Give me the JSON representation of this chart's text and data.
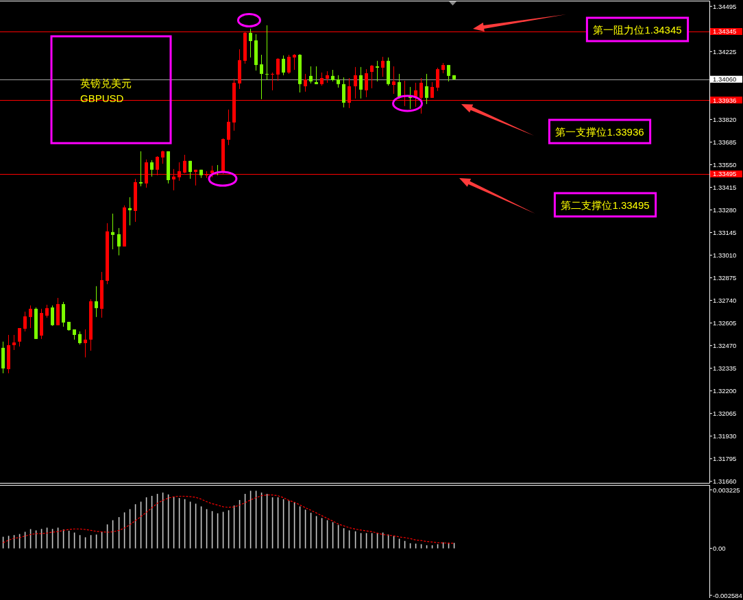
{
  "chart_data": [
    {
      "type": "candlestick",
      "tick_labels": "y",
      "categories": [
        null,
        null,
        null,
        null,
        null,
        null,
        null,
        null,
        null,
        null,
        null,
        null,
        null,
        null,
        null,
        null,
        null,
        null,
        null,
        null,
        null,
        null,
        null,
        null,
        null,
        null,
        null,
        null,
        null,
        null,
        null,
        null,
        null,
        null,
        null,
        null,
        null,
        null,
        null,
        null,
        null,
        null,
        null,
        null,
        null,
        null,
        null,
        null,
        null,
        null,
        null,
        null,
        null,
        null,
        null,
        null,
        null,
        null,
        null,
        null,
        null,
        null,
        null,
        null,
        null,
        null,
        null,
        null,
        null,
        null,
        null,
        null,
        null,
        null,
        null,
        null,
        null,
        null,
        null,
        null,
        null,
        null,
        null,
        null,
        null,
        null,
        null,
        null,
        null,
        null,
        null,
        null,
        null,
        null,
        null,
        null,
        null,
        null,
        null,
        null,
        null,
        null,
        null,
        null,
        null,
        null,
        null,
        null,
        null,
        null,
        null,
        null,
        null,
        null,
        null,
        null,
        null,
        null,
        null,
        null,
        null,
        null,
        null,
        null,
        null,
        null,
        null,
        null,
        null
      ],
      "ohlc": [
        [
          1.32457,
          1.32494,
          1.32305,
          1.32334
        ],
        [
          1.3233,
          1.32534,
          1.32305,
          1.32473
        ],
        [
          1.32473,
          1.32534,
          1.32444,
          1.32489
        ],
        [
          1.32494,
          1.32575,
          1.32465,
          1.32575
        ],
        [
          1.32571,
          1.32673,
          1.32555,
          1.32645
        ],
        [
          1.32641,
          1.3271,
          1.32575,
          1.3269
        ],
        [
          1.3269,
          1.32698,
          1.3251,
          1.3251
        ],
        [
          1.3253,
          1.3269,
          1.3251,
          1.32665
        ],
        [
          1.32649,
          1.32714,
          1.32637,
          1.32694
        ],
        [
          1.32698,
          1.3271,
          1.32588,
          1.32592
        ],
        [
          1.32592,
          1.32755,
          1.32592,
          1.32718
        ],
        [
          1.32718,
          1.32731,
          1.32583,
          1.32608
        ],
        [
          1.32612,
          1.32612,
          1.32559,
          1.32563
        ],
        [
          1.32567,
          1.32567,
          1.32506,
          1.32534
        ],
        [
          1.32539,
          1.32555,
          1.32477,
          1.32485
        ],
        [
          1.32485,
          1.32567,
          1.324,
          1.32506
        ],
        [
          1.32506,
          1.32747,
          1.3244,
          1.32735
        ],
        [
          1.32735,
          1.32825,
          1.32641,
          1.32694
        ],
        [
          1.3269,
          1.3291,
          1.32637,
          1.32861
        ],
        [
          1.32857,
          1.33201,
          1.32837,
          1.33152
        ],
        [
          1.33148,
          1.33258,
          1.33045,
          1.33131
        ],
        [
          1.33135,
          1.33172,
          1.33009,
          1.33062
        ],
        [
          1.33062,
          1.33307,
          1.33062,
          1.33295
        ],
        [
          1.33291,
          1.33356,
          1.33188,
          1.33278
        ],
        [
          1.33274,
          1.33466,
          1.33209,
          1.33446
        ],
        [
          1.33446,
          1.3363,
          1.33421,
          1.33438
        ],
        [
          1.33438,
          1.33581,
          1.33413,
          1.33564
        ],
        [
          1.33564,
          1.33577,
          1.33479,
          1.3352
        ],
        [
          1.3352,
          1.33601,
          1.33487,
          1.33597
        ],
        [
          1.33593,
          1.33634,
          1.33556,
          1.3363
        ],
        [
          1.3363,
          1.3363,
          1.33438,
          1.33458
        ],
        [
          1.33462,
          1.33524,
          1.33397,
          1.33479
        ],
        [
          1.33475,
          1.33564,
          1.33454,
          1.33511
        ],
        [
          1.33503,
          1.33609,
          1.33499,
          1.33573
        ],
        [
          1.33573,
          1.33573,
          1.33466,
          1.33507
        ],
        [
          1.33507,
          1.3352,
          1.33426,
          1.3352
        ],
        [
          1.3352,
          1.3352,
          1.33471,
          1.33487
        ],
        [
          1.33487,
          1.33511,
          1.33471,
          1.33491
        ],
        [
          1.33499,
          1.33544,
          1.33475,
          1.33515
        ],
        [
          1.33507,
          1.33548,
          1.33487,
          1.33503
        ],
        [
          1.33503,
          1.33708,
          1.33495,
          1.33703
        ],
        [
          1.33699,
          1.33879,
          1.33667,
          1.33806
        ],
        [
          1.33802,
          1.34063,
          1.33753,
          1.34039
        ],
        [
          1.34035,
          1.34239,
          1.34002,
          1.34174
        ],
        [
          1.3417,
          1.34341,
          1.34153,
          1.34337
        ],
        [
          1.34337,
          1.34362,
          1.3419,
          1.34288
        ],
        [
          1.34292,
          1.34329,
          1.34112,
          1.34145
        ],
        [
          1.34149,
          1.34206,
          1.33941,
          1.34092
        ],
        [
          1.34092,
          1.34382,
          1.34055,
          1.34088
        ],
        [
          1.34088,
          1.341,
          1.33994,
          1.34092
        ],
        [
          1.34088,
          1.34186,
          1.34051,
          1.34182
        ],
        [
          1.34182,
          1.34202,
          1.34084,
          1.341
        ],
        [
          1.341,
          1.34206,
          1.34092,
          1.34194
        ],
        [
          1.3419,
          1.3421,
          1.34116,
          1.34206
        ],
        [
          1.34206,
          1.3421,
          1.33981,
          1.34031
        ],
        [
          1.34018,
          1.34092,
          1.33986,
          1.34059
        ],
        [
          1.3408,
          1.34137,
          1.34035,
          1.34047
        ],
        [
          1.34043,
          1.34137,
          1.34031,
          1.34031
        ],
        [
          1.34031,
          1.341,
          1.34022,
          1.34067
        ],
        [
          1.34063,
          1.34108,
          1.34039,
          1.34084
        ],
        [
          1.3408,
          1.34116,
          1.34047,
          1.34055
        ],
        [
          1.34059,
          1.34084,
          1.3401,
          1.34031
        ],
        [
          1.34031,
          1.34071,
          1.33892,
          1.3392
        ],
        [
          1.3392,
          1.34067,
          1.33888,
          1.34018
        ],
        [
          1.34018,
          1.34133,
          1.33945,
          1.34084
        ],
        [
          1.34084,
          1.34133,
          1.33945,
          1.33998
        ],
        [
          1.33994,
          1.3412,
          1.33953,
          1.34096
        ],
        [
          1.34104,
          1.34145,
          1.34006,
          1.34141
        ],
        [
          1.34137,
          1.3417,
          1.34047,
          1.34129
        ],
        [
          1.34129,
          1.34194,
          1.34075,
          1.3417
        ],
        [
          1.3417,
          1.3419,
          1.34022,
          1.34031
        ],
        [
          1.34026,
          1.34137,
          1.33973,
          1.34047
        ],
        [
          1.34043,
          1.34092,
          1.33945,
          1.33953
        ],
        [
          1.33957,
          1.34051,
          1.339,
          1.33965
        ],
        [
          1.33957,
          1.34014,
          1.33883,
          1.33949
        ],
        [
          1.33953,
          1.34039,
          1.33896,
          1.33994
        ],
        [
          1.33949,
          1.34067,
          1.33855,
          1.34039
        ],
        [
          1.34018,
          1.34092,
          1.33912,
          1.33949
        ],
        [
          1.33949,
          1.34043,
          1.33949,
          1.34014
        ],
        [
          1.3401,
          1.34129,
          1.3399,
          1.3412
        ],
        [
          1.34116,
          1.34157,
          1.34096,
          1.34145
        ],
        [
          1.34145,
          1.34145,
          1.34047,
          1.3408
        ],
        [
          1.34084,
          1.34084,
          1.34055,
          1.3406
        ],
        null,
        null,
        null,
        null,
        null,
        null,
        null,
        null,
        null,
        null,
        null,
        null,
        null,
        null,
        null,
        null,
        null,
        null,
        null,
        null,
        null,
        null,
        null,
        null,
        null,
        null,
        null,
        null,
        null,
        null,
        null,
        null,
        null,
        null,
        null,
        null,
        null,
        null,
        null,
        null,
        null,
        null,
        null,
        null,
        null,
        null
      ],
      "colors": [
        "#7cfc00",
        "#ff0000",
        "#ff0000",
        "#ff0000",
        "#ff0000",
        "#ff0000",
        "#7cfc00",
        "#ff0000",
        "#ff0000",
        "#7cfc00",
        "#ff0000",
        "#7cfc00",
        "#7cfc00",
        "#7cfc00",
        "#7cfc00",
        "#ff0000",
        "#ff0000",
        "#7cfc00",
        "#ff0000",
        "#ff0000",
        "#7cfc00",
        "#7cfc00",
        "#ff0000",
        "#7cfc00",
        "#ff0000",
        "#7cfc00",
        "#ff0000",
        "#7cfc00",
        "#ff0000",
        "#ff0000",
        "#7cfc00",
        "#ff0000",
        "#ff0000",
        "#ff0000",
        "#7cfc00",
        "#ff0000",
        "#7cfc00",
        "#ff0000",
        "#ff0000",
        "#7cfc00",
        "#ff0000",
        "#ff0000",
        "#ff0000",
        "#ff0000",
        "#ff0000",
        "#7cfc00",
        "#7cfc00",
        "#7cfc00",
        "#7cfc00",
        "#ff0000",
        "#ff0000",
        "#7cfc00",
        "#ff0000",
        "#ff0000",
        "#7cfc00",
        "#ff0000",
        "#7cfc00",
        "#7cfc00",
        "#ff0000",
        "#ff0000",
        "#7cfc00",
        "#7cfc00",
        "#7cfc00",
        "#ff0000",
        "#ff0000",
        "#7cfc00",
        "#ff0000",
        "#ff0000",
        "#7cfc00",
        "#ff0000",
        "#7cfc00",
        "#ff0000",
        "#7cfc00",
        "#ff0000",
        "#7cfc00",
        "#ff0000",
        "#ff0000",
        "#7cfc00",
        "#ff0000",
        "#ff0000",
        "#ff0000",
        "#7cfc00",
        "#7cfc00",
        null,
        null,
        null,
        null,
        null,
        null,
        null,
        null,
        null,
        null,
        null,
        null,
        null,
        null,
        null,
        null,
        null,
        null,
        null,
        null,
        null,
        null,
        null,
        null,
        null,
        null,
        null,
        null,
        null,
        null,
        null,
        null,
        null,
        null,
        null,
        null,
        null,
        null,
        null,
        null,
        null,
        null,
        null,
        null,
        null,
        null
      ],
      "ylim": [
        1.31651,
        1.34533
      ],
      "yticks": [
        {
          "value": 1.34495,
          "label": "1.34495"
        },
        {
          "value": 1.34345,
          "label": "1.34345"
        },
        {
          "value": 1.34225,
          "label": "1.34225"
        },
        {
          "value": 1.3406,
          "label": "1.34060"
        },
        {
          "value": 1.33936,
          "label": "1.33936"
        },
        {
          "value": 1.3382,
          "label": "1.33820"
        },
        {
          "value": 1.33685,
          "label": "1.33685"
        },
        {
          "value": 1.3355,
          "label": "1.33550"
        },
        {
          "value": 1.33495,
          "label": "1.33495"
        },
        {
          "value": 1.33415,
          "label": "1.33415"
        },
        {
          "value": 1.3328,
          "label": "1.33280"
        },
        {
          "value": 1.33145,
          "label": "1.33145"
        },
        {
          "value": 1.3301,
          "label": "1.33010"
        },
        {
          "value": 1.32875,
          "label": "1.32875"
        },
        {
          "value": 1.3274,
          "label": "1.32740"
        },
        {
          "value": 1.32605,
          "label": "1.32605"
        },
        {
          "value": 1.3247,
          "label": "1.32470"
        },
        {
          "value": 1.32335,
          "label": "1.32335"
        },
        {
          "value": 1.322,
          "label": "1.32200"
        },
        {
          "value": 1.32065,
          "label": "1.32065"
        },
        {
          "value": 1.3193,
          "label": "1.31930"
        },
        {
          "value": 1.31795,
          "label": "1.31795"
        },
        {
          "value": 1.3166,
          "label": "1.31660"
        }
      ],
      "ref_lines": [
        {
          "axis": "y",
          "value": 1.34345,
          "label": "第一阻力位1.34345",
          "color": "#ff0000"
        },
        {
          "axis": "y",
          "value": 1.33936,
          "label": "第一支撑位1.33936",
          "color": "#ff0000"
        },
        {
          "axis": "y",
          "value": 1.33495,
          "label": "第二支撑位1.33495",
          "color": "#ff0000"
        },
        {
          "axis": "y",
          "value": 1.3406,
          "color": "#a0a0a0"
        }
      ],
      "annotations": [
        "英镑兑美元\nGBPUSD"
      ]
    },
    {
      "type": "bar",
      "tick_labels": "y",
      "line_style": "dotted",
      "categories": [
        null,
        null,
        null,
        null,
        null,
        null,
        null,
        null,
        null,
        null,
        null,
        null,
        null,
        null,
        null,
        null,
        null,
        null,
        null,
        null,
        null,
        null,
        null,
        null,
        null,
        null,
        null,
        null,
        null,
        null,
        null,
        null,
        null,
        null,
        null,
        null,
        null,
        null,
        null,
        null,
        null,
        null,
        null,
        null,
        null,
        null,
        null,
        null,
        null,
        null,
        null,
        null,
        null,
        null,
        null,
        null,
        null,
        null,
        null,
        null,
        null,
        null,
        null,
        null,
        null,
        null,
        null,
        null,
        null,
        null,
        null,
        null,
        null,
        null,
        null,
        null,
        null,
        null,
        null,
        null,
        null,
        null,
        null,
        null,
        null,
        null,
        null,
        null,
        null,
        null,
        null,
        null,
        null,
        null,
        null,
        null,
        null,
        null,
        null,
        null,
        null,
        null,
        null,
        null,
        null,
        null,
        null,
        null,
        null,
        null,
        null,
        null,
        null,
        null,
        null,
        null,
        null,
        null,
        null,
        null,
        null,
        null,
        null,
        null,
        null,
        null,
        null,
        null,
        null
      ],
      "series": [
        {
          "color": "#c8c8c8",
          "values": [
            0.00064,
            0.00069,
            0.00073,
            0.00079,
            0.00091,
            0.00106,
            0.00099,
            0.00107,
            0.00114,
            0.00107,
            0.00114,
            0.00104,
            0.00097,
            0.00087,
            0.00073,
            0.00061,
            0.00073,
            0.00076,
            0.00092,
            0.00132,
            0.00155,
            0.00172,
            0.00198,
            0.00216,
            0.00243,
            0.00257,
            0.00281,
            0.00289,
            0.003,
            0.00307,
            0.00297,
            0.00284,
            0.00277,
            0.00271,
            0.00257,
            0.00246,
            0.00231,
            0.00216,
            0.00205,
            0.00193,
            0.00201,
            0.0021,
            0.00236,
            0.00266,
            0.003,
            0.00317,
            0.00317,
            0.00307,
            0.003,
            0.00281,
            0.00281,
            0.00271,
            0.00262,
            0.00254,
            0.00231,
            0.00213,
            0.00196,
            0.00178,
            0.00167,
            0.00155,
            0.00144,
            0.00129,
            0.00111,
            0.00099,
            0.00094,
            0.00084,
            0.00084,
            0.00084,
            0.00084,
            0.00087,
            0.00076,
            0.00069,
            0.00053,
            0.00041,
            0.00028,
            0.00026,
            0.00023,
            0.00017,
            0.00017,
            0.00023,
            0.00033,
            0.0003,
            0.0003,
            null,
            null,
            null,
            null,
            null,
            null,
            null,
            null,
            null,
            null,
            null,
            null,
            null,
            null,
            null,
            null,
            null,
            null,
            null,
            null,
            null,
            null,
            null,
            null,
            null,
            null,
            null,
            null,
            null,
            null,
            null,
            null,
            null,
            null,
            null,
            null,
            null,
            null,
            null,
            null,
            null,
            null,
            null,
            null,
            null,
            null
          ]
        },
        {
          "type": "line",
          "color": "#ff0000",
          "values": [
            0.00031,
            0.00045,
            0.00056,
            0.00059,
            0.00068,
            0.00076,
            0.00081,
            0.00081,
            0.00084,
            0.00089,
            0.00092,
            0.00099,
            0.00104,
            0.00107,
            0.00107,
            0.00104,
            0.00099,
            0.00094,
            0.00091,
            0.00089,
            0.00091,
            0.00099,
            0.00112,
            0.0013,
            0.00152,
            0.00175,
            0.00198,
            0.00223,
            0.00248,
            0.00264,
            0.00277,
            0.00284,
            0.00287,
            0.00287,
            0.00285,
            0.00281,
            0.00271,
            0.00257,
            0.00246,
            0.00238,
            0.00229,
            0.00226,
            0.00228,
            0.00238,
            0.00251,
            0.00267,
            0.00279,
            0.0029,
            0.00294,
            0.00294,
            0.0029,
            0.00279,
            0.00264,
            0.00254,
            0.00239,
            0.00224,
            0.0021,
            0.00195,
            0.0018,
            0.00165,
            0.0015,
            0.00134,
            0.00124,
            0.00114,
            0.00106,
            0.00101,
            0.00096,
            0.00092,
            0.00084,
            0.00076,
            0.00073,
            0.00069,
            0.00063,
            0.00059,
            0.00054,
            0.00046,
            0.00043,
            0.00038,
            0.00035,
            0.00031,
            0.0003,
            0.00028,
            0.00028,
            null,
            null,
            null,
            null,
            null,
            null,
            null,
            null,
            null,
            null,
            null,
            null,
            null,
            null,
            null,
            null,
            null,
            null,
            null,
            null,
            null,
            null,
            null,
            null,
            null,
            null,
            null,
            null,
            null,
            null,
            null,
            null,
            null,
            null,
            null,
            null,
            null,
            null,
            null,
            null,
            null,
            null,
            null,
            null,
            null,
            null
          ]
        }
      ],
      "ylim": [
        -0.00273,
        0.00353
      ],
      "yticks": [
        {
          "value": 0.003225,
          "label": "0.003225"
        },
        {
          "value": 0,
          "label": "0.00"
        },
        {
          "value": -0.002584,
          "label": "-0.002584"
        }
      ]
    }
  ]
}
